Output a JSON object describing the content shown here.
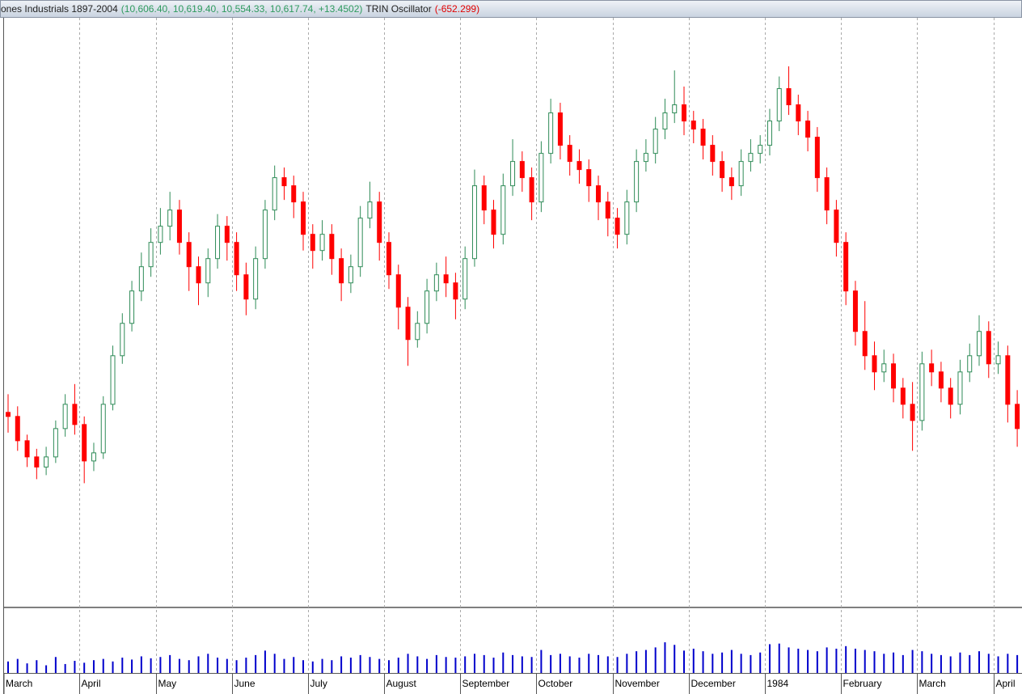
{
  "header": {
    "title": "ones Industrials 1897-2004",
    "price_values": "(10,606.40, 10,619.40, 10,554.33, 10,617.74, +13.4502)",
    "indicator": "TRIN Oscillator",
    "indicator_value": "(-652.299)"
  },
  "chart_data": {
    "type": "candlestick",
    "ylim": [
      1019,
      1310
    ],
    "volume_ylim": [
      0,
      100
    ],
    "up_color": "#2e8b57",
    "down_color": "#ff0000",
    "volume_color": "#0000cc",
    "grid": true,
    "months": [
      {
        "label": "March",
        "ohlc": [
          [
            1115,
            1124,
            1105,
            1113
          ],
          [
            1113,
            1118,
            1096,
            1101
          ],
          [
            1101,
            1104,
            1088,
            1093
          ],
          [
            1093,
            1097,
            1082,
            1088
          ],
          [
            1088,
            1098,
            1084,
            1093
          ],
          [
            1093,
            1111,
            1090,
            1107
          ],
          [
            1107,
            1124,
            1103,
            1119
          ],
          [
            1119,
            1129,
            1104,
            1109
          ]
        ],
        "volume": [
          18,
          22,
          15,
          20,
          12,
          25,
          14,
          19
        ]
      },
      {
        "label": "April",
        "ohlc": [
          [
            1109,
            1113,
            1080,
            1091
          ],
          [
            1091,
            1100,
            1086,
            1095
          ],
          [
            1095,
            1123,
            1092,
            1119
          ],
          [
            1119,
            1148,
            1116,
            1143
          ],
          [
            1143,
            1164,
            1139,
            1159
          ],
          [
            1159,
            1180,
            1155,
            1175
          ],
          [
            1175,
            1194,
            1170,
            1187
          ],
          [
            1187,
            1206,
            1182,
            1199
          ]
        ],
        "volume": [
          16,
          20,
          22,
          18,
          24,
          21,
          26,
          23
        ]
      },
      {
        "label": "May",
        "ohlc": [
          [
            1199,
            1216,
            1193,
            1207
          ],
          [
            1207,
            1224,
            1200,
            1215
          ],
          [
            1215,
            1220,
            1193,
            1199
          ],
          [
            1199,
            1204,
            1175,
            1187
          ],
          [
            1187,
            1192,
            1168,
            1179
          ],
          [
            1179,
            1196,
            1172,
            1191
          ],
          [
            1191,
            1213,
            1186,
            1207
          ],
          [
            1207,
            1212,
            1190,
            1199
          ]
        ],
        "volume": [
          25,
          28,
          22,
          20,
          26,
          30,
          24,
          22
        ]
      },
      {
        "label": "June",
        "ohlc": [
          [
            1199,
            1204,
            1175,
            1183
          ],
          [
            1183,
            1189,
            1163,
            1171
          ],
          [
            1171,
            1197,
            1166,
            1191
          ],
          [
            1191,
            1220,
            1186,
            1215
          ],
          [
            1215,
            1237,
            1210,
            1231
          ],
          [
            1231,
            1236,
            1220,
            1227
          ],
          [
            1227,
            1232,
            1211,
            1219
          ],
          [
            1219,
            1224,
            1195,
            1203
          ]
        ],
        "volume": [
          20,
          24,
          28,
          35,
          30,
          22,
          25,
          20
        ]
      },
      {
        "label": "July",
        "ohlc": [
          [
            1203,
            1208,
            1186,
            1195
          ],
          [
            1195,
            1210,
            1190,
            1203
          ],
          [
            1203,
            1208,
            1183,
            1191
          ],
          [
            1191,
            1196,
            1170,
            1179
          ],
          [
            1179,
            1193,
            1174,
            1187
          ],
          [
            1187,
            1217,
            1182,
            1211
          ],
          [
            1211,
            1229,
            1206,
            1219
          ],
          [
            1219,
            1224,
            1190,
            1199
          ]
        ],
        "volume": [
          18,
          22,
          20,
          26,
          24,
          28,
          25,
          22
        ]
      },
      {
        "label": "August",
        "ohlc": [
          [
            1199,
            1204,
            1176,
            1183
          ],
          [
            1183,
            1188,
            1156,
            1167
          ],
          [
            1167,
            1172,
            1138,
            1151
          ],
          [
            1151,
            1165,
            1147,
            1159
          ],
          [
            1159,
            1181,
            1154,
            1175
          ],
          [
            1175,
            1189,
            1170,
            1183
          ],
          [
            1183,
            1192,
            1172,
            1179
          ],
          [
            1179,
            1184,
            1161,
            1171
          ]
        ],
        "volume": [
          20,
          24,
          30,
          26,
          22,
          28,
          25,
          24
        ]
      },
      {
        "label": "September",
        "ohlc": [
          [
            1171,
            1197,
            1166,
            1191
          ],
          [
            1191,
            1235,
            1187,
            1227
          ],
          [
            1227,
            1232,
            1208,
            1215
          ],
          [
            1215,
            1220,
            1196,
            1203
          ],
          [
            1203,
            1233,
            1198,
            1227
          ],
          [
            1227,
            1250,
            1222,
            1239
          ],
          [
            1239,
            1244,
            1224,
            1231
          ],
          [
            1231,
            1236,
            1210,
            1219
          ]
        ],
        "volume": [
          26,
          30,
          28,
          24,
          32,
          28,
          26,
          25
        ]
      },
      {
        "label": "October",
        "ohlc": [
          [
            1219,
            1249,
            1214,
            1243
          ],
          [
            1243,
            1270,
            1238,
            1263
          ],
          [
            1263,
            1268,
            1240,
            1247
          ],
          [
            1247,
            1252,
            1232,
            1239
          ],
          [
            1239,
            1245,
            1228,
            1235
          ],
          [
            1235,
            1240,
            1219,
            1227
          ],
          [
            1227,
            1232,
            1210,
            1219
          ],
          [
            1219,
            1224,
            1202,
            1211
          ]
        ],
        "volume": [
          36,
          28,
          30,
          26,
          24,
          30,
          28,
          26
        ]
      },
      {
        "label": "November",
        "ohlc": [
          [
            1211,
            1216,
            1196,
            1203
          ],
          [
            1203,
            1225,
            1198,
            1219
          ],
          [
            1219,
            1245,
            1214,
            1239
          ],
          [
            1239,
            1250,
            1234,
            1243
          ],
          [
            1243,
            1261,
            1238,
            1255
          ],
          [
            1255,
            1270,
            1250,
            1263
          ],
          [
            1263,
            1284,
            1258,
            1267
          ],
          [
            1267,
            1276,
            1252,
            1259
          ]
        ],
        "volume": [
          25,
          30,
          34,
          36,
          40,
          48,
          44,
          35
        ]
      },
      {
        "label": "December",
        "ohlc": [
          [
            1259,
            1264,
            1248,
            1255
          ],
          [
            1255,
            1260,
            1240,
            1247
          ],
          [
            1247,
            1252,
            1232,
            1239
          ],
          [
            1239,
            1244,
            1224,
            1231
          ],
          [
            1231,
            1236,
            1220,
            1227
          ],
          [
            1227,
            1245,
            1222,
            1239
          ],
          [
            1239,
            1250,
            1234,
            1243
          ],
          [
            1243,
            1252,
            1238,
            1247
          ]
        ],
        "volume": [
          38,
          34,
          30,
          32,
          36,
          30,
          28,
          32
        ]
      },
      {
        "label": "1984",
        "ohlc": [
          [
            1247,
            1265,
            1242,
            1259
          ],
          [
            1259,
            1281,
            1254,
            1275
          ],
          [
            1275,
            1286,
            1262,
            1267
          ],
          [
            1267,
            1272,
            1252,
            1259
          ],
          [
            1259,
            1264,
            1244,
            1251
          ],
          [
            1251,
            1256,
            1224,
            1231
          ],
          [
            1231,
            1236,
            1208,
            1215
          ],
          [
            1215,
            1220,
            1192,
            1199
          ]
        ],
        "volume": [
          45,
          46,
          40,
          38,
          36,
          34,
          40,
          38
        ]
      },
      {
        "label": "February",
        "ohlc": [
          [
            1199,
            1204,
            1168,
            1175
          ],
          [
            1175,
            1180,
            1148,
            1155
          ],
          [
            1155,
            1170,
            1136,
            1143
          ],
          [
            1143,
            1150,
            1126,
            1135
          ],
          [
            1135,
            1146,
            1130,
            1139
          ],
          [
            1139,
            1144,
            1120,
            1127
          ],
          [
            1127,
            1132,
            1112,
            1119
          ],
          [
            1119,
            1130,
            1096,
            1111
          ]
        ],
        "volume": [
          42,
          38,
          36,
          34,
          30,
          32,
          28,
          36
        ]
      },
      {
        "label": "March",
        "ohlc": [
          [
            1111,
            1145,
            1106,
            1139
          ],
          [
            1139,
            1146,
            1128,
            1135
          ],
          [
            1135,
            1140,
            1120,
            1127
          ],
          [
            1127,
            1132,
            1112,
            1119
          ],
          [
            1119,
            1141,
            1114,
            1135
          ],
          [
            1135,
            1149,
            1130,
            1143
          ],
          [
            1143,
            1163,
            1138,
            1155
          ],
          [
            1155,
            1160,
            1132,
            1139
          ]
        ],
        "volume": [
          34,
          30,
          28,
          26,
          32,
          28,
          34,
          30
        ]
      },
      {
        "label": "April",
        "ohlc": [
          [
            1139,
            1150,
            1134,
            1143
          ],
          [
            1143,
            1148,
            1110,
            1119
          ],
          [
            1119,
            1126,
            1098,
            1107
          ]
        ],
        "volume": [
          26,
          30,
          28
        ]
      }
    ]
  }
}
